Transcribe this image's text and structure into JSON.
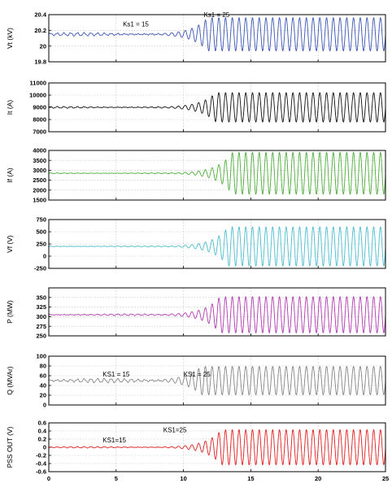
{
  "chart_data": [
    {
      "type": "line",
      "ylabel": "Vt (kV)",
      "ylim": [
        19.8,
        20.4
      ],
      "yticks": [
        "19.8",
        "20",
        "20.2",
        "20.4"
      ],
      "xlim": [
        0,
        25
      ],
      "grid": true,
      "color": "#3a55b4",
      "annotations": [
        {
          "text": "Ks1 = 15",
          "x": 5.5,
          "y": 20.25
        },
        {
          "text": "Ks1 = 25",
          "x": 11.5,
          "y": 20.37
        }
      ],
      "signal": {
        "baseline": 20.15,
        "pre_amp": 0.012,
        "final_amp": 0.21,
        "freq_hz": 2.0,
        "growth_start": 8.5,
        "saturation_time": 13.5
      }
    },
    {
      "type": "line",
      "ylabel": "It (A)",
      "ylim": [
        7000,
        11000
      ],
      "yticks": [
        "7000",
        "8000",
        "9000",
        "10000",
        "11000"
      ],
      "xlim": [
        0,
        25
      ],
      "grid": true,
      "color": "#111111",
      "annotations": [],
      "signal": {
        "baseline": 9000,
        "pre_amp": 40,
        "final_amp": 1200,
        "freq_hz": 2.0,
        "growth_start": 8.5,
        "saturation_time": 13.5
      }
    },
    {
      "type": "line",
      "ylabel": "If (A)",
      "ylim": [
        1500,
        4000
      ],
      "yticks": [
        "1500",
        "2000",
        "2500",
        "3000",
        "3500",
        "4000"
      ],
      "xlim": [
        0,
        25
      ],
      "grid": true,
      "color": "#4cad3a",
      "annotations": [],
      "signal": {
        "baseline": 2850,
        "pre_amp": 12,
        "final_amp": 1050,
        "freq_hz": 2.0,
        "growth_start": 8.5,
        "saturation_time": 13.5
      }
    },
    {
      "type": "line",
      "ylabel": "Vf (V)",
      "ylim": [
        -250,
        750
      ],
      "yticks": [
        "-250",
        "0",
        "250",
        "500",
        "750"
      ],
      "xlim": [
        0,
        25
      ],
      "grid": true,
      "color": "#4cbcd0",
      "annotations": [],
      "signal": {
        "baseline": 200,
        "pre_amp": 6,
        "final_amp": 400,
        "freq_hz": 2.0,
        "growth_start": 8.5,
        "saturation_time": 13.5
      }
    },
    {
      "type": "line",
      "ylabel": "P (MW)",
      "ylim": [
        250,
        375
      ],
      "yticks": [
        "250",
        "275",
        "300",
        "325",
        "350"
      ],
      "xlim": [
        0,
        25
      ],
      "grid": true,
      "color": "#b03ab0",
      "annotations": [],
      "signal": {
        "baseline": 305,
        "pre_amp": 1.2,
        "final_amp": 47,
        "freq_hz": 2.0,
        "growth_start": 8.5,
        "saturation_time": 13.5
      }
    },
    {
      "type": "line",
      "ylabel": "Q (MVAr)",
      "ylim": [
        0,
        100
      ],
      "yticks": [
        "0",
        "20",
        "40",
        "60",
        "80",
        "100"
      ],
      "xlim": [
        0,
        25
      ],
      "grid": true,
      "color": "#858585",
      "annotations": [
        {
          "text": "KS1 = 15",
          "x": 4.0,
          "y": 58
        },
        {
          "text": "KS1 = 25",
          "x": 10.0,
          "y": 58
        }
      ],
      "signal": {
        "baseline": 50,
        "pre_amp": 2.5,
        "final_amp": 29,
        "freq_hz": 2.0,
        "growth_start": 8.5,
        "saturation_time": 13.5
      }
    },
    {
      "type": "line",
      "ylabel": "PSS OUT (V)",
      "ylim": [
        -0.6,
        0.6
      ],
      "yticks": [
        "-0.6",
        "-0.4",
        "-0.2",
        "0",
        "0.2",
        "0.4",
        "0.6"
      ],
      "xlim": [
        0,
        25
      ],
      "grid": true,
      "color": "#e02020",
      "annotations": [
        {
          "text": "KS1=15",
          "x": 4.0,
          "y": 0.12
        },
        {
          "text": "KS1=25",
          "x": 8.5,
          "y": 0.37
        }
      ],
      "signal": {
        "baseline": 0,
        "pre_amp": 0.01,
        "final_amp": 0.43,
        "freq_hz": 2.0,
        "growth_start": 8.5,
        "saturation_time": 13.5
      }
    }
  ],
  "xaxis": {
    "xlim": [
      0,
      25
    ],
    "ticks": [
      "0",
      "5",
      "10",
      "15",
      "20",
      "25"
    ]
  }
}
